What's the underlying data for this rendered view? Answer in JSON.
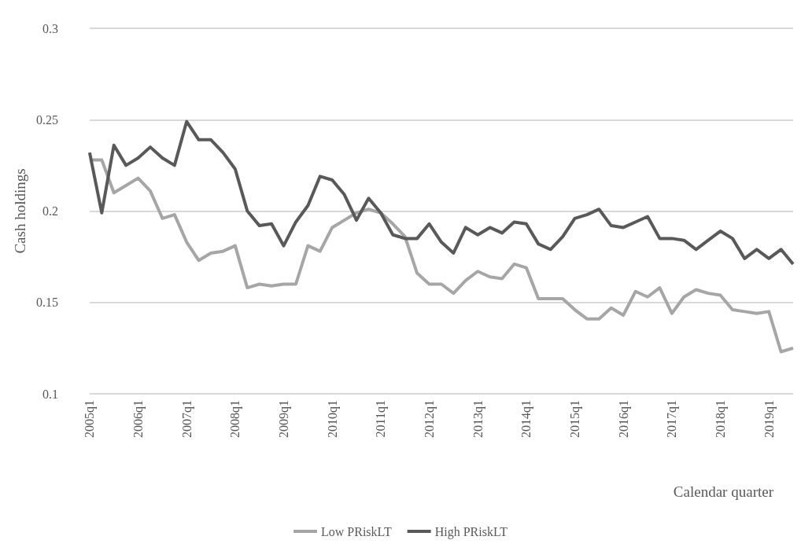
{
  "chart_data": {
    "type": "line",
    "xlabel": "Calendar quarter",
    "ylabel": "Cash holdings",
    "categories": [
      "2005q1",
      null,
      null,
      null,
      "2006q1",
      null,
      null,
      null,
      "2007q1",
      null,
      null,
      null,
      "2008q1",
      null,
      null,
      null,
      "2009q1",
      null,
      null,
      null,
      "2010q1",
      null,
      null,
      null,
      "2011q1",
      null,
      null,
      null,
      "2012q1",
      null,
      null,
      null,
      "2013q1",
      null,
      null,
      null,
      "2014q1",
      null,
      null,
      null,
      "2015q1",
      null,
      null,
      null,
      "2016q1",
      null,
      null,
      null,
      "2017q1",
      null,
      null,
      null,
      "2018q1",
      null,
      null,
      null,
      "2019q1",
      null,
      null
    ],
    "series": [
      {
        "name": "Low PRiskLT",
        "color": "#a6a6a6",
        "values": [
          0.228,
          0.228,
          0.21,
          0.214,
          0.218,
          0.211,
          0.196,
          0.198,
          0.183,
          0.173,
          0.177,
          0.178,
          0.181,
          0.158,
          0.16,
          0.159,
          0.16,
          0.16,
          0.181,
          0.178,
          0.191,
          0.195,
          0.199,
          0.201,
          0.199,
          0.193,
          0.186,
          0.166,
          0.16,
          0.16,
          0.155,
          0.162,
          0.167,
          0.164,
          0.163,
          0.171,
          0.169,
          0.152,
          0.152,
          0.152,
          0.146,
          0.141,
          0.141,
          0.147,
          0.143,
          0.156,
          0.153,
          0.158,
          0.144,
          0.153,
          0.157,
          0.155,
          0.154,
          0.146,
          0.145,
          0.144,
          0.145,
          0.123,
          0.125
        ]
      },
      {
        "name": "High PRiskLT",
        "color": "#595959",
        "values": [
          0.232,
          0.199,
          0.236,
          0.225,
          0.229,
          0.235,
          0.229,
          0.225,
          0.249,
          0.239,
          0.239,
          0.232,
          0.223,
          0.2,
          0.192,
          0.193,
          0.181,
          0.194,
          0.203,
          0.219,
          0.217,
          0.209,
          0.195,
          0.207,
          0.199,
          0.187,
          0.185,
          0.185,
          0.193,
          0.183,
          0.177,
          0.191,
          0.187,
          0.191,
          0.188,
          0.194,
          0.193,
          0.182,
          0.179,
          0.186,
          0.196,
          0.198,
          0.201,
          0.192,
          0.191,
          0.194,
          0.197,
          0.185,
          0.185,
          0.184,
          0.179,
          0.184,
          0.189,
          0.185,
          0.174,
          0.179,
          0.174,
          0.179,
          0.171
        ]
      }
    ],
    "ylim": [
      0.1,
      0.3
    ],
    "yticks": [
      0.1,
      0.15,
      0.2,
      0.25,
      0.3
    ],
    "grid": "y",
    "legend": "bottom",
    "marker": "none",
    "line_style": "solid"
  }
}
